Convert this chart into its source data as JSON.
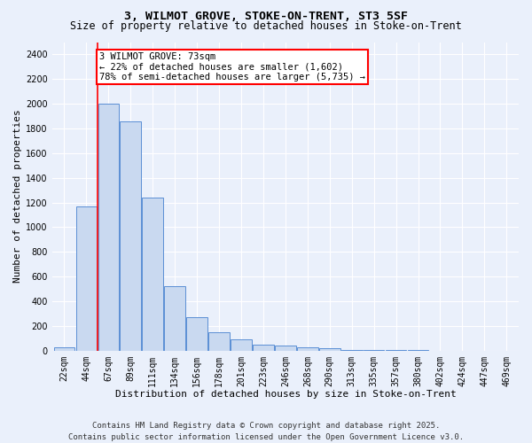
{
  "title1": "3, WILMOT GROVE, STOKE-ON-TRENT, ST3 5SF",
  "title2": "Size of property relative to detached houses in Stoke-on-Trent",
  "xlabel": "Distribution of detached houses by size in Stoke-on-Trent",
  "ylabel": "Number of detached properties",
  "bin_labels": [
    "22sqm",
    "44sqm",
    "67sqm",
    "89sqm",
    "111sqm",
    "134sqm",
    "156sqm",
    "178sqm",
    "201sqm",
    "223sqm",
    "246sqm",
    "268sqm",
    "290sqm",
    "313sqm",
    "335sqm",
    "357sqm",
    "380sqm",
    "402sqm",
    "424sqm",
    "447sqm",
    "469sqm"
  ],
  "bar_values": [
    25,
    1170,
    2000,
    1860,
    1240,
    520,
    270,
    150,
    90,
    45,
    40,
    30,
    20,
    8,
    4,
    3,
    2,
    1,
    1,
    1,
    0
  ],
  "bar_color": "#c9d9f0",
  "bar_edge_color": "#5b8fd4",
  "vline_bin_index": 2,
  "annotation_text": "3 WILMOT GROVE: 73sqm\n← 22% of detached houses are smaller (1,602)\n78% of semi-detached houses are larger (5,735) →",
  "annotation_box_color": "white",
  "annotation_box_edge_color": "red",
  "vline_color": "red",
  "ylim": [
    0,
    2500
  ],
  "yticks": [
    0,
    200,
    400,
    600,
    800,
    1000,
    1200,
    1400,
    1600,
    1800,
    2000,
    2200,
    2400
  ],
  "bg_color": "#eaf0fb",
  "footer_line1": "Contains HM Land Registry data © Crown copyright and database right 2025.",
  "footer_line2": "Contains public sector information licensed under the Open Government Licence v3.0.",
  "title_fontsize": 9.5,
  "subtitle_fontsize": 8.5,
  "xlabel_fontsize": 8,
  "ylabel_fontsize": 8,
  "tick_fontsize": 7,
  "footer_fontsize": 6.5,
  "annot_fontsize": 7.5
}
